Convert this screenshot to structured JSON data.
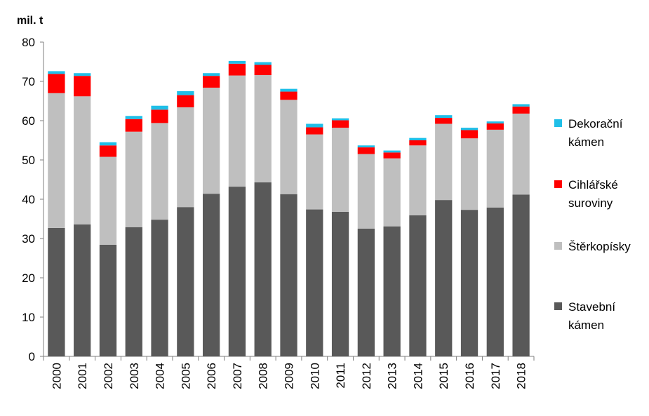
{
  "chart_data": {
    "type": "bar",
    "stacked": true,
    "unit_label": "mil. t",
    "title": "",
    "xlabel": "",
    "ylabel": "",
    "ylim": [
      0,
      80
    ],
    "yticks": [
      0,
      10,
      20,
      30,
      40,
      50,
      60,
      70,
      80
    ],
    "grid": false,
    "legend_position": "right",
    "categories": [
      "2000",
      "2001",
      "2002",
      "2003",
      "2004",
      "2005",
      "2006",
      "2007",
      "2008",
      "2009",
      "2010",
      "2011",
      "2012",
      "2013",
      "2014",
      "2015",
      "2016",
      "2017",
      "2018"
    ],
    "series": [
      {
        "name": "Stavební kámen",
        "legend_lines": [
          "Stavební",
          "kámen"
        ],
        "color": "#595959",
        "values": [
          32.7,
          33.6,
          28.4,
          32.9,
          34.8,
          38.0,
          41.4,
          43.2,
          44.3,
          41.3,
          37.4,
          36.8,
          32.5,
          33.1,
          35.9,
          39.8,
          37.3,
          37.9,
          41.2
        ]
      },
      {
        "name": "Štěrkopísky",
        "legend_lines": [
          "Štěrkopísky"
        ],
        "color": "#bfbfbf",
        "values": [
          34.3,
          32.6,
          22.4,
          24.3,
          24.6,
          25.4,
          27.0,
          28.3,
          27.3,
          24.0,
          19.1,
          21.4,
          19.0,
          17.3,
          17.8,
          19.4,
          18.2,
          19.8,
          20.6
        ]
      },
      {
        "name": "Cihlářské suroviny",
        "legend_lines": [
          "Cihlářské",
          "suroviny"
        ],
        "color": "#ff0000",
        "values": [
          4.9,
          5.2,
          2.9,
          3.2,
          3.4,
          3.1,
          3.0,
          3.0,
          2.6,
          2.1,
          1.8,
          1.9,
          1.7,
          1.5,
          1.3,
          1.5,
          2.1,
          1.6,
          1.8
        ]
      },
      {
        "name": "Dekorační kámen",
        "legend_lines": [
          "Dekorační",
          "kámen"
        ],
        "color": "#1fbfe8",
        "values": [
          0.7,
          0.7,
          0.8,
          0.8,
          1.0,
          1.0,
          0.7,
          0.7,
          0.7,
          0.7,
          0.9,
          0.5,
          0.5,
          0.5,
          0.6,
          0.7,
          0.6,
          0.5,
          0.6
        ]
      }
    ]
  }
}
